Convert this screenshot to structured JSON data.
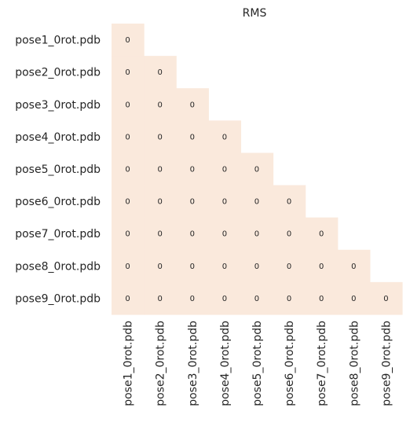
{
  "chart_data": {
    "type": "heatmap",
    "title": "RMS",
    "xlabel": "",
    "ylabel": "",
    "rows": [
      "pose1_0rot.pdb",
      "pose2_0rot.pdb",
      "pose3_0rot.pdb",
      "pose4_0rot.pdb",
      "pose5_0rot.pdb",
      "pose6_0rot.pdb",
      "pose7_0rot.pdb",
      "pose8_0rot.pdb",
      "pose9_0rot.pdb"
    ],
    "columns": [
      "pose1_0rot.pdb",
      "pose2_0rot.pdb",
      "pose3_0rot.pdb",
      "pose4_0rot.pdb",
      "pose5_0rot.pdb",
      "pose6_0rot.pdb",
      "pose7_0rot.pdb",
      "pose8_0rot.pdb",
      "pose9_0rot.pdb"
    ],
    "mask": "upper-triangle-hidden",
    "values": [
      [
        0,
        null,
        null,
        null,
        null,
        null,
        null,
        null,
        null
      ],
      [
        0,
        0,
        null,
        null,
        null,
        null,
        null,
        null,
        null
      ],
      [
        0,
        0,
        0,
        null,
        null,
        null,
        null,
        null,
        null
      ],
      [
        0,
        0,
        0,
        0,
        null,
        null,
        null,
        null,
        null
      ],
      [
        0,
        0,
        0,
        0,
        0,
        null,
        null,
        null,
        null
      ],
      [
        0,
        0,
        0,
        0,
        0,
        0,
        null,
        null,
        null
      ],
      [
        0,
        0,
        0,
        0,
        0,
        0,
        0,
        null,
        null
      ],
      [
        0,
        0,
        0,
        0,
        0,
        0,
        0,
        0,
        null
      ],
      [
        0,
        0,
        0,
        0,
        0,
        0,
        0,
        0,
        0
      ]
    ],
    "annotations": true,
    "cell_color": "#fae9dc",
    "colorbar": false,
    "grid": false
  }
}
